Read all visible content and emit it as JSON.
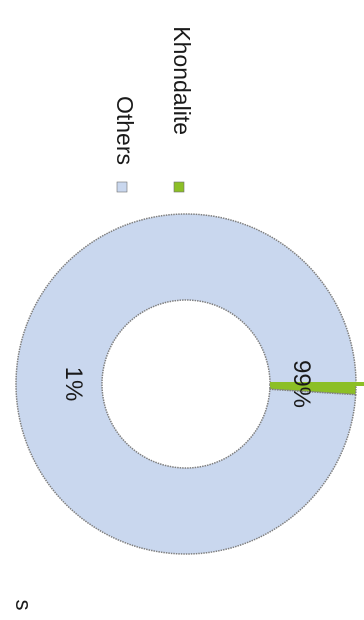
{
  "chart_data": {
    "type": "pie",
    "variant": "doughnut",
    "orientation": "rotated 90 degrees clockwise",
    "slices": [
      {
        "label": "Khondalite",
        "value": 1,
        "display": "1%",
        "color": "#8cbf26"
      },
      {
        "label": "Others",
        "value": 99,
        "display": "99%",
        "color": "#c9d7ee"
      }
    ],
    "legend_placement": "right",
    "legend": [
      {
        "label": "Khondalite",
        "color": "#8cbf26"
      },
      {
        "label": "Others",
        "color": "#c9d7ee"
      }
    ],
    "border_color": "#7f7f7f",
    "clipped_text": "s"
  }
}
